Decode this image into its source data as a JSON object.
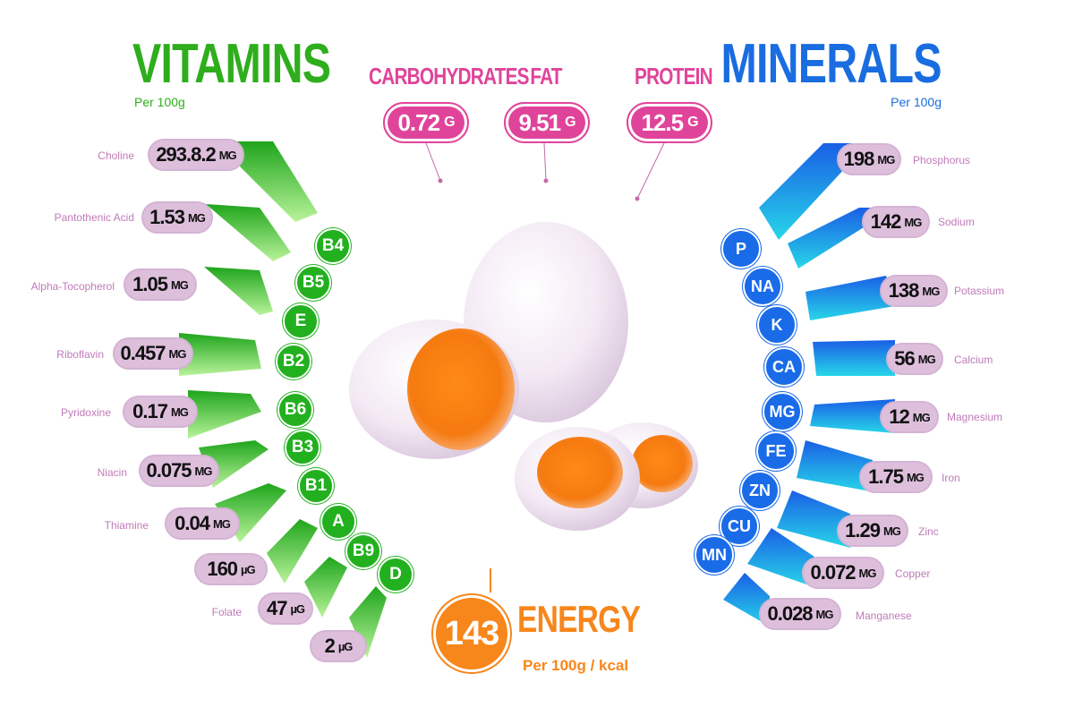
{
  "vitamins": {
    "title": "VITAMINS",
    "per": "Per 100g",
    "items": [
      {
        "name": "Choline",
        "value": "293.8.2",
        "unit": "MG"
      },
      {
        "name": "Pantothenic Acid",
        "value": "1.53",
        "unit": "MG"
      },
      {
        "name": "Alpha-Tocopherol",
        "value": "1.05",
        "unit": "MG"
      },
      {
        "name": "Riboflavin",
        "value": "0.457",
        "unit": "MG"
      },
      {
        "name": "Pyridoxine",
        "value": "0.17",
        "unit": "MG"
      },
      {
        "name": "Niacin",
        "value": "0.075",
        "unit": "MG"
      },
      {
        "name": "Thiamine",
        "value": "0.04",
        "unit": "MG"
      },
      {
        "name": "",
        "value": "160",
        "unit": "µG"
      },
      {
        "name": "Folate",
        "value": "47",
        "unit": "µG"
      },
      {
        "name": "",
        "value": "2",
        "unit": "µG"
      }
    ],
    "circles": [
      "B4",
      "B5",
      "E",
      "B2",
      "B6",
      "B3",
      "B1",
      "A",
      "B9",
      "D"
    ]
  },
  "minerals": {
    "title": "MINERALS",
    "per": "Per 100g",
    "items": [
      {
        "name": "Phosphorus",
        "value": "198",
        "unit": "MG"
      },
      {
        "name": "Sodium",
        "value": "142",
        "unit": "MG"
      },
      {
        "name": "Potassium",
        "value": "138",
        "unit": "MG"
      },
      {
        "name": "Calcium",
        "value": "56",
        "unit": "MG"
      },
      {
        "name": "Magnesium",
        "value": "12",
        "unit": "MG"
      },
      {
        "name": "Iron",
        "value": "1.75",
        "unit": "MG"
      },
      {
        "name": "Zinc",
        "value": "1.29",
        "unit": "MG"
      },
      {
        "name": "Copper",
        "value": "0.072",
        "unit": "MG"
      },
      {
        "name": "Manganese",
        "value": "0.028",
        "unit": "MG"
      }
    ],
    "circles": [
      "P",
      "NA",
      "K",
      "CA",
      "MG",
      "FE",
      "ZN",
      "CU",
      "MN"
    ]
  },
  "macros": [
    {
      "label": "CARBOHYDRATES",
      "value": "0.72",
      "unit": "G"
    },
    {
      "label": "FAT",
      "value": "9.51",
      "unit": "G"
    },
    {
      "label": "PROTEIN",
      "value": "12.5",
      "unit": "G"
    }
  ],
  "energy": {
    "value": "143",
    "label": "ENERGY",
    "per": "Per 100g / kcal"
  },
  "colors": {
    "vitamins": "#2fae1d",
    "minerals": "#1a6de0",
    "macros": "#e0449a",
    "energy": "#f7861b"
  }
}
